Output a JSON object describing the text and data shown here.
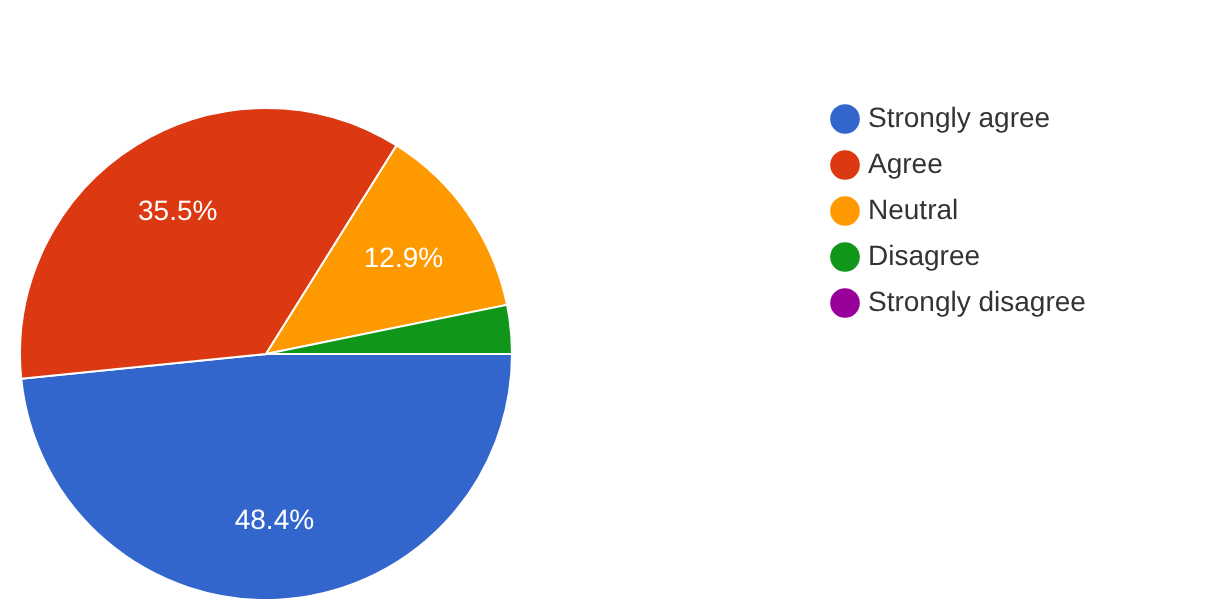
{
  "chart_data": {
    "type": "pie",
    "categories": [
      "Strongly agree",
      "Agree",
      "Neutral",
      "Disagree",
      "Strongly disagree"
    ],
    "values": [
      48.4,
      35.5,
      12.9,
      3.2,
      0
    ],
    "colors": [
      "#3366cc",
      "#dc3912",
      "#ff9900",
      "#109618",
      "#990099"
    ],
    "value_labels": [
      "48.4%",
      "35.5%",
      "12.9%",
      null,
      null
    ],
    "legend": "right"
  }
}
